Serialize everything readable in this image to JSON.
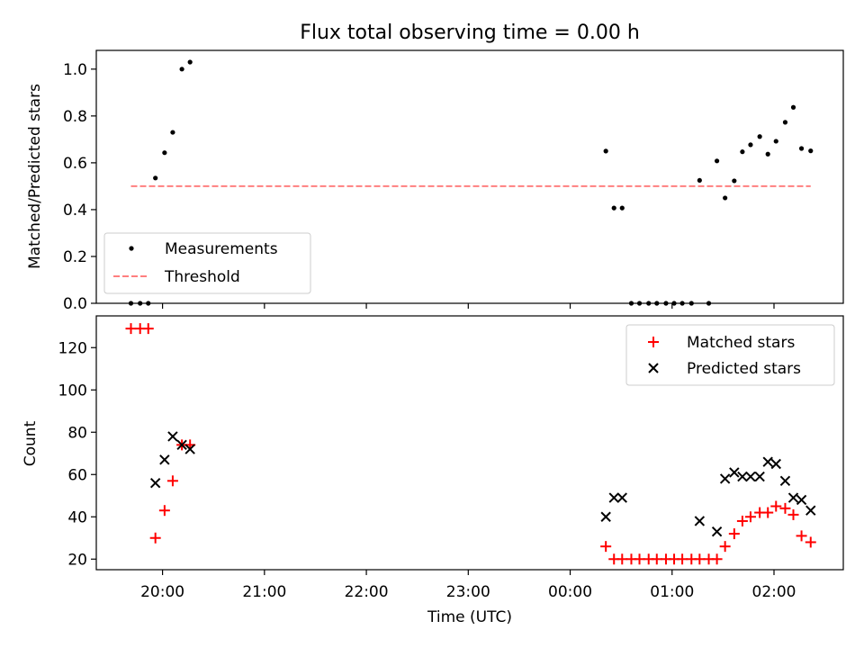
{
  "title": "Flux total observing time = 0.00 h",
  "chart_data": [
    {
      "type": "scatter",
      "ylabel": "Matched/Predicted stars",
      "ylim": [
        0,
        1.08
      ],
      "yticks": [
        0,
        0.2,
        0.4,
        0.6,
        0.8,
        1.0
      ],
      "ytick_labels": [
        "0.0",
        "0.2",
        "0.4",
        "0.6",
        "0.8",
        "1.0"
      ],
      "xlim_hours": [
        19.35,
        26.68
      ],
      "legend": {
        "placement": "lower-left",
        "entries": [
          "Measurements",
          "Threshold"
        ]
      },
      "series": [
        {
          "name": "Measurements",
          "marker": "dot",
          "color": "#000000",
          "points": [
            [
              19.69,
              0
            ],
            [
              19.78,
              0
            ],
            [
              19.86,
              0
            ],
            [
              19.93,
              0.535
            ],
            [
              20.02,
              0.643
            ],
            [
              20.1,
              0.73
            ],
            [
              20.19,
              1.0
            ],
            [
              20.27,
              1.03
            ],
            [
              24.35,
              0.65
            ],
            [
              24.43,
              0.407
            ],
            [
              24.51,
              0.407
            ],
            [
              24.6,
              0
            ],
            [
              24.68,
              0
            ],
            [
              24.77,
              0
            ],
            [
              24.85,
              0
            ],
            [
              24.94,
              0
            ],
            [
              25.02,
              0
            ],
            [
              25.1,
              0
            ],
            [
              25.19,
              0
            ],
            [
              25.27,
              0.525
            ],
            [
              25.36,
              0
            ],
            [
              25.44,
              0.608
            ],
            [
              25.52,
              0.45
            ],
            [
              25.61,
              0.523
            ],
            [
              25.69,
              0.647
            ],
            [
              25.77,
              0.677
            ],
            [
              25.86,
              0.712
            ],
            [
              25.94,
              0.637
            ],
            [
              26.02,
              0.692
            ],
            [
              26.11,
              0.773
            ],
            [
              26.19,
              0.837
            ],
            [
              26.27,
              0.661
            ],
            [
              26.36,
              0.651
            ]
          ]
        },
        {
          "name": "Threshold",
          "marker": "dashed-line",
          "color": "#ff7f7f",
          "points": [
            [
              19.69,
              0.5
            ],
            [
              26.36,
              0.5
            ]
          ]
        }
      ]
    },
    {
      "type": "scatter",
      "ylabel": "Count",
      "xlabel": "Time (UTC)",
      "ylim": [
        15,
        135
      ],
      "yticks": [
        20,
        40,
        60,
        80,
        100,
        120
      ],
      "ytick_labels": [
        "20",
        "40",
        "60",
        "80",
        "100",
        "120"
      ],
      "xlim_hours": [
        19.35,
        26.68
      ],
      "xticks_hours": [
        20,
        21,
        22,
        23,
        24,
        25,
        26
      ],
      "xtick_labels": [
        "20:00",
        "21:00",
        "22:00",
        "23:00",
        "00:00",
        "01:00",
        "02:00"
      ],
      "legend": {
        "placement": "top-right",
        "entries": [
          "Matched stars",
          "Predicted stars"
        ]
      },
      "series": [
        {
          "name": "Matched stars",
          "marker": "plus",
          "color": "#ff0000",
          "points": [
            [
              19.69,
              129
            ],
            [
              19.78,
              129
            ],
            [
              19.86,
              129
            ],
            [
              19.93,
              30
            ],
            [
              20.02,
              43
            ],
            [
              20.1,
              57
            ],
            [
              20.19,
              74
            ],
            [
              20.27,
              74
            ],
            [
              24.35,
              26
            ],
            [
              24.43,
              20
            ],
            [
              24.51,
              20
            ],
            [
              24.6,
              20
            ],
            [
              24.68,
              20
            ],
            [
              24.77,
              20
            ],
            [
              24.85,
              20
            ],
            [
              24.94,
              20
            ],
            [
              25.02,
              20
            ],
            [
              25.1,
              20
            ],
            [
              25.19,
              20
            ],
            [
              25.27,
              20
            ],
            [
              25.36,
              20
            ],
            [
              25.44,
              20
            ],
            [
              25.52,
              26
            ],
            [
              25.61,
              32
            ],
            [
              25.69,
              38
            ],
            [
              25.77,
              40
            ],
            [
              25.86,
              42
            ],
            [
              25.94,
              42
            ],
            [
              26.02,
              45
            ],
            [
              26.11,
              44
            ],
            [
              26.19,
              41
            ],
            [
              26.27,
              31
            ],
            [
              26.36,
              28
            ]
          ]
        },
        {
          "name": "Predicted stars",
          "marker": "x",
          "color": "#000000",
          "points": [
            [
              19.93,
              56
            ],
            [
              20.02,
              67
            ],
            [
              20.1,
              78
            ],
            [
              20.19,
              74
            ],
            [
              20.27,
              72
            ],
            [
              24.35,
              40
            ],
            [
              24.43,
              49
            ],
            [
              24.51,
              49
            ],
            [
              25.27,
              38
            ],
            [
              25.44,
              33
            ],
            [
              25.52,
              58
            ],
            [
              25.61,
              61
            ],
            [
              25.69,
              59
            ],
            [
              25.77,
              59
            ],
            [
              25.86,
              59
            ],
            [
              25.94,
              66
            ],
            [
              26.02,
              65
            ],
            [
              26.11,
              57
            ],
            [
              26.19,
              49
            ],
            [
              26.27,
              48
            ],
            [
              26.36,
              43
            ]
          ]
        }
      ]
    }
  ]
}
